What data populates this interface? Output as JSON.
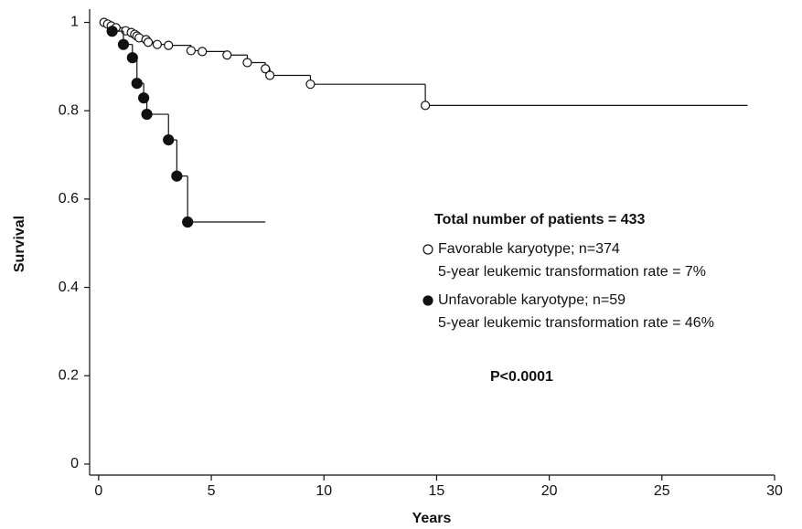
{
  "chart_data": {
    "type": "step",
    "ylabel": "Survival",
    "xlabel": "Years",
    "xlim": [
      -0.4,
      30
    ],
    "ylim": [
      -0.025,
      1.03
    ],
    "xticks": [
      0,
      5,
      10,
      15,
      20,
      25,
      30
    ],
    "yticks": [
      0,
      0.2,
      0.4,
      0.6,
      0.8,
      1
    ],
    "legend_title": "Total number of patients = 433",
    "annotation": "P<0.0001",
    "series": [
      {
        "name": "Favorable karyotype; n=374",
        "note": "5-year leukemic transformation rate = 7%",
        "marker": "open",
        "color": "#111111",
        "x": [
          0.24,
          0.4,
          0.56,
          0.77,
          1.2,
          1.45,
          1.6,
          1.7,
          1.8,
          2.1,
          2.2,
          2.6,
          3.1,
          4.1,
          4.6,
          5.7,
          6.6,
          7.4,
          7.6,
          9.4,
          14.5
        ],
        "values": [
          1.0,
          0.996,
          0.992,
          0.988,
          0.981,
          0.977,
          0.973,
          0.969,
          0.965,
          0.961,
          0.955,
          0.95,
          0.948,
          0.936,
          0.934,
          0.926,
          0.909,
          0.895,
          0.88,
          0.86,
          0.812
        ],
        "end_x": 28.8
      },
      {
        "name": "Unfavorable karyotype; n=59",
        "note": "5-year leukemic transformation rate = 46%",
        "marker": "filled",
        "color": "#111111",
        "x": [
          0.6,
          1.1,
          1.5,
          1.7,
          2.0,
          2.14,
          3.1,
          3.47,
          3.95
        ],
        "values": [
          0.98,
          0.95,
          0.92,
          0.862,
          0.829,
          0.792,
          0.734,
          0.652,
          0.548
        ],
        "end_x": 7.4
      }
    ]
  }
}
